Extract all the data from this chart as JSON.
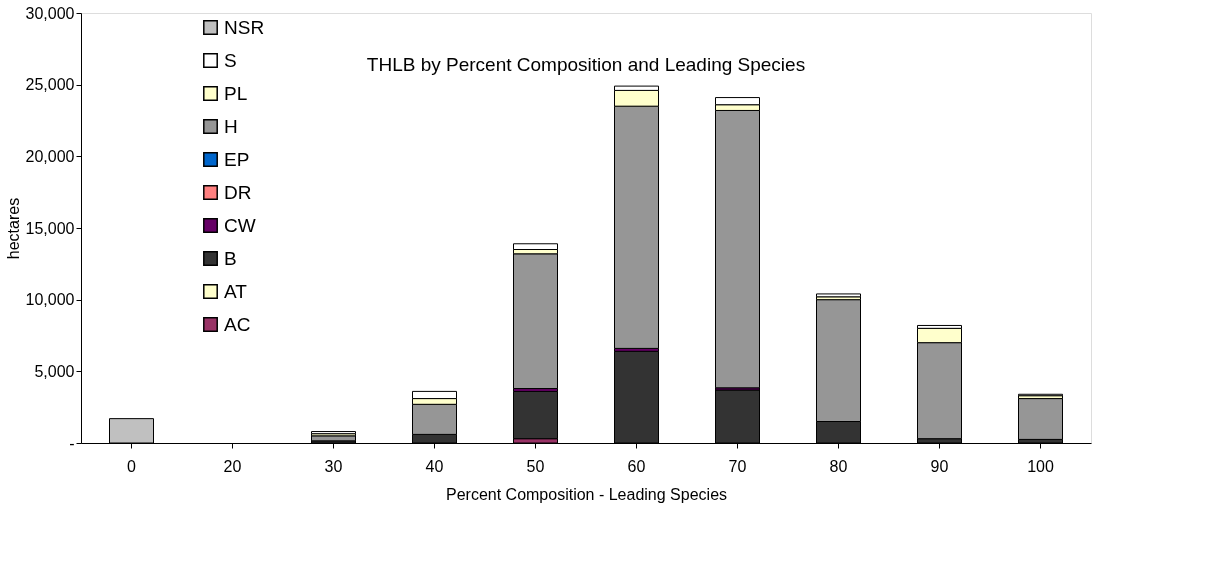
{
  "chart_data": {
    "type": "bar",
    "title": "THLB by Percent Composition and Leading Species",
    "xlabel": "Percent Composition - Leading Species",
    "ylabel": "hectares",
    "categories": [
      "0",
      "20",
      "30",
      "40",
      "50",
      "60",
      "70",
      "80",
      "90",
      "100"
    ],
    "stacked": true,
    "legend": "left",
    "grid": false,
    "ylim": [
      0,
      30000
    ],
    "yticks": [
      {
        "value": 0,
        "label": "-"
      },
      {
        "value": 5000,
        "label": "5,000"
      },
      {
        "value": 10000,
        "label": "10,000"
      },
      {
        "value": 15000,
        "label": "15,000"
      },
      {
        "value": 20000,
        "label": "20,000"
      },
      {
        "value": 25000,
        "label": "25,000"
      },
      {
        "value": 30000,
        "label": "30,000"
      }
    ],
    "series": [
      {
        "name": "AC",
        "color": "#993366",
        "values": [
          null,
          null,
          null,
          null,
          300,
          null,
          null,
          null,
          null,
          null
        ]
      },
      {
        "name": "AT",
        "color": "#ffffcc",
        "values": [
          null,
          null,
          null,
          null,
          null,
          null,
          null,
          null,
          null,
          null
        ]
      },
      {
        "name": "B",
        "color": "#333333",
        "values": [
          null,
          null,
          150,
          600,
          3300,
          6400,
          3700,
          1500,
          300,
          250
        ]
      },
      {
        "name": "CW",
        "color": "#660066",
        "values": [
          null,
          null,
          null,
          null,
          200,
          200,
          150,
          null,
          null,
          null
        ]
      },
      {
        "name": "DR",
        "color": "#ff8080",
        "values": [
          null,
          null,
          null,
          null,
          null,
          null,
          null,
          null,
          null,
          null
        ]
      },
      {
        "name": "EP",
        "color": "#0066cc",
        "values": [
          null,
          null,
          null,
          null,
          null,
          null,
          null,
          null,
          null,
          null
        ]
      },
      {
        "name": "H",
        "color": "#969696",
        "values": [
          null,
          null,
          350,
          2100,
          9400,
          16900,
          19350,
          8500,
          6700,
          2850
        ]
      },
      {
        "name": "PL",
        "color": "#ffffcc",
        "values": [
          null,
          null,
          150,
          400,
          300,
          1100,
          400,
          200,
          1000,
          200
        ]
      },
      {
        "name": "S",
        "color": "#ffffff",
        "values": [
          null,
          null,
          150,
          500,
          400,
          300,
          500,
          200,
          200,
          100
        ]
      },
      {
        "name": "NSR",
        "color": "#c0c0c0",
        "values": [
          1700,
          null,
          null,
          null,
          null,
          null,
          null,
          null,
          null,
          null
        ]
      }
    ]
  }
}
